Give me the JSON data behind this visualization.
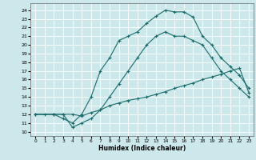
{
  "xlabel": "Humidex (Indice chaleur)",
  "bg_color": "#cce8ea",
  "line_color": "#1a6b6b",
  "grid_color": "#ffffff",
  "xlim": [
    -0.5,
    23.5
  ],
  "ylim": [
    9.5,
    24.8
  ],
  "xticks": [
    0,
    1,
    2,
    3,
    4,
    5,
    6,
    7,
    8,
    9,
    10,
    11,
    12,
    13,
    14,
    15,
    16,
    17,
    18,
    19,
    20,
    21,
    22,
    23
  ],
  "yticks": [
    10,
    11,
    12,
    13,
    14,
    15,
    16,
    17,
    18,
    19,
    20,
    21,
    22,
    23,
    24
  ],
  "line1_x": [
    0,
    2,
    3,
    4,
    5,
    6,
    7,
    8,
    9,
    10,
    11,
    12,
    13,
    14,
    15,
    16,
    17,
    18,
    19,
    20,
    21,
    22,
    23
  ],
  "line1_y": [
    12,
    12,
    11.5,
    11,
    12,
    14,
    17,
    18.5,
    20.5,
    21,
    21.5,
    22.5,
    23.3,
    24,
    23.8,
    23.8,
    23.2,
    21,
    20,
    18.5,
    17.5,
    16.5,
    15
  ],
  "line2_x": [
    0,
    1,
    2,
    3,
    4,
    5,
    6,
    7,
    8,
    9,
    10,
    11,
    12,
    13,
    14,
    15,
    16,
    17,
    18,
    19,
    20,
    21,
    22,
    23
  ],
  "line2_y": [
    12,
    12,
    12,
    12,
    10.5,
    11,
    11.5,
    12.5,
    14,
    15.5,
    17,
    18.5,
    20,
    21,
    21.5,
    21,
    21,
    20.5,
    20,
    18.5,
    17,
    16,
    15,
    14
  ],
  "line3_x": [
    0,
    2,
    3,
    4,
    5,
    6,
    7,
    8,
    9,
    10,
    11,
    12,
    13,
    14,
    15,
    16,
    17,
    18,
    19,
    20,
    21,
    22,
    23
  ],
  "line3_y": [
    12,
    12,
    12,
    12,
    11.8,
    12.2,
    12.5,
    13.0,
    13.3,
    13.6,
    13.8,
    14.0,
    14.3,
    14.6,
    15.0,
    15.3,
    15.6,
    16.0,
    16.3,
    16.6,
    17.0,
    17.3,
    14.5
  ]
}
